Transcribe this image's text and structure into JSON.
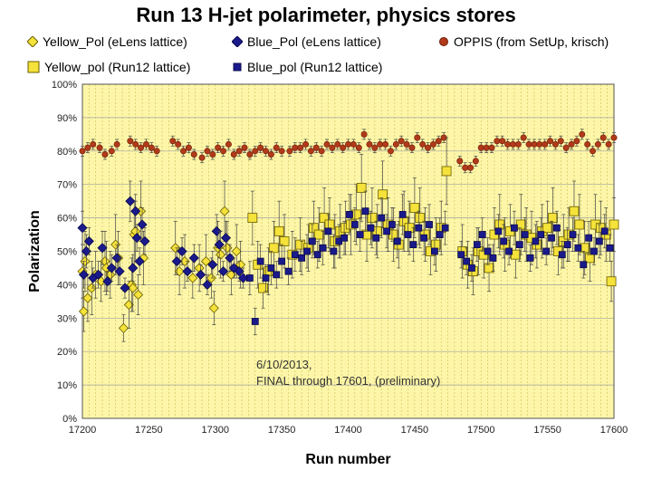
{
  "chart_data": {
    "type": "scatter",
    "title": "Run 13 H-jet polarimeter, physics stores",
    "xlabel": "Run number",
    "ylabel": "Polarization",
    "xlim": [
      17200,
      17600
    ],
    "ylim": [
      0,
      100
    ],
    "x_ticks": [
      "17200",
      "17250",
      "17300",
      "17350",
      "17400",
      "17450",
      "17500",
      "17550",
      "17600"
    ],
    "y_ticks": [
      "0%",
      "10%",
      "20%",
      "30%",
      "40%",
      "50%",
      "60%",
      "70%",
      "80%",
      "90%",
      "100%"
    ],
    "grid": true,
    "annotation": [
      "6/10/2013,",
      "FINAL through 17601, (preliminary)"
    ],
    "series": [
      {
        "name": "Yellow_Pol (eLens lattice)",
        "marker": "diamond",
        "color": "#f5e23a",
        "edge": "#6b5e00",
        "x": [
          17200,
          17201,
          17202,
          17204,
          17207,
          17210,
          17214,
          17217,
          17218,
          17221,
          17225,
          17227,
          17231,
          17235,
          17237,
          17238,
          17239,
          17240,
          17242,
          17244,
          17246,
          17270,
          17273,
          17277,
          17283,
          17288,
          17293,
          17297,
          17299,
          17302,
          17304,
          17307,
          17309,
          17312,
          17316,
          17319
        ],
        "y": [
          44,
          32,
          47,
          36,
          39,
          43,
          41,
          47,
          45,
          43,
          52,
          48,
          27,
          34,
          40,
          39,
          55,
          56,
          37,
          62,
          48,
          51,
          44,
          47,
          42,
          45,
          47,
          42,
          33,
          51,
          49,
          62,
          51,
          43,
          50,
          46
        ],
        "err": [
          8,
          6,
          9,
          7,
          8,
          7,
          6,
          9,
          8,
          7,
          9,
          8,
          4,
          7,
          8,
          7,
          10,
          9,
          6,
          9,
          8,
          8,
          7,
          8,
          6,
          7,
          8,
          6,
          5,
          8,
          7,
          9,
          8,
          6,
          8,
          7
        ]
      },
      {
        "name": "Blue_Pol (eLens lattice)",
        "marker": "diamond",
        "color": "#1a1a8c",
        "edge": "#0a0a4a",
        "x": [
          17200,
          17201,
          17203,
          17205,
          17208,
          17212,
          17215,
          17219,
          17222,
          17226,
          17228,
          17232,
          17236,
          17238,
          17240,
          17241,
          17243,
          17245,
          17247,
          17271,
          17275,
          17279,
          17284,
          17289,
          17294,
          17298,
          17301,
          17303,
          17306,
          17308,
          17311,
          17314,
          17318,
          17321
        ],
        "y": [
          57,
          43,
          50,
          53,
          42,
          43,
          51,
          41,
          45,
          48,
          44,
          39,
          65,
          45,
          62,
          54,
          47,
          58,
          53,
          47,
          50,
          44,
          48,
          43,
          40,
          46,
          56,
          52,
          44,
          54,
          48,
          45,
          44,
          42
        ],
        "err": [
          5,
          4,
          5,
          4,
          3,
          4,
          5,
          3,
          4,
          4,
          4,
          3,
          6,
          4,
          5,
          4,
          4,
          5,
          4,
          4,
          4,
          3,
          4,
          3,
          3,
          4,
          5,
          4,
          3,
          5,
          4,
          3,
          3,
          3
        ]
      },
      {
        "name": "OPPIS (from SetUp, krisch)",
        "marker": "circle",
        "color": "#b03a1a",
        "edge": "#6e1e08",
        "x": [
          17200,
          17204,
          17208,
          17213,
          17217,
          17222,
          17226,
          17236,
          17240,
          17244,
          17248,
          17252,
          17256,
          17268,
          17272,
          17276,
          17280,
          17284,
          17290,
          17294,
          17298,
          17302,
          17306,
          17310,
          17314,
          17318,
          17322,
          17326,
          17330,
          17334,
          17338,
          17342,
          17346,
          17350,
          17356,
          17360,
          17364,
          17368,
          17372,
          17376,
          17380,
          17384,
          17388,
          17392,
          17396,
          17400,
          17404,
          17408,
          17412,
          17416,
          17420,
          17424,
          17428,
          17432,
          17436,
          17440,
          17444,
          17448,
          17452,
          17456,
          17460,
          17464,
          17468,
          17472,
          17484,
          17488,
          17492,
          17496,
          17500,
          17504,
          17508,
          17512,
          17516,
          17520,
          17524,
          17528,
          17532,
          17536,
          17540,
          17544,
          17548,
          17552,
          17556,
          17560,
          17564,
          17568,
          17572,
          17576,
          17580,
          17584,
          17588,
          17592,
          17596,
          17600
        ],
        "y": [
          80,
          81,
          82,
          81,
          79,
          80,
          82,
          83,
          82,
          81,
          82,
          81,
          80,
          83,
          82,
          80,
          81,
          79,
          78,
          80,
          79,
          81,
          80,
          82,
          79,
          80,
          81,
          79,
          80,
          81,
          80,
          79,
          81,
          80,
          80,
          81,
          81,
          82,
          80,
          81,
          80,
          82,
          81,
          82,
          81,
          82,
          82,
          81,
          85,
          82,
          81,
          82,
          82,
          80,
          82,
          83,
          82,
          81,
          84,
          82,
          81,
          82,
          83,
          84,
          77,
          75,
          75,
          77,
          81,
          81,
          81,
          83,
          83,
          82,
          82,
          82,
          84,
          82,
          82,
          82,
          82,
          83,
          82,
          83,
          81,
          82,
          83,
          85,
          82,
          80,
          82,
          84,
          82,
          84
        ],
        "err": [
          1.5,
          1.5,
          1.5,
          1.5,
          1.5,
          1.5,
          1.5,
          1.5,
          1.5,
          1.5,
          1.5,
          1.5,
          1.5,
          1.5,
          1.5,
          1.5,
          1.5,
          1.5,
          1.5,
          1.5,
          1.5,
          1.5,
          1.5,
          1.5,
          1.5,
          1.5,
          1.5,
          1.5,
          1.5,
          1.5,
          1.5,
          1.5,
          1.5,
          1.5,
          1.5,
          1.5,
          1.5,
          1.5,
          1.5,
          1.5,
          1.5,
          1.5,
          1.5,
          1.5,
          1.5,
          1.5,
          1.5,
          1.5,
          1.5,
          1.5,
          1.5,
          1.5,
          1.5,
          1.5,
          1.5,
          1.5,
          1.5,
          1.5,
          1.5,
          1.5,
          1.5,
          1.5,
          1.5,
          1.5,
          1.5,
          1.5,
          1.5,
          1.5,
          1.5,
          1.5,
          1.5,
          1.5,
          1.5,
          1.5,
          1.5,
          1.5,
          1.5,
          1.5,
          1.5,
          1.5,
          1.5,
          1.5,
          1.5,
          1.5,
          1.5,
          1.5,
          1.5,
          1.5,
          1.5,
          1.5,
          1.5,
          1.5,
          1.5,
          1.5
        ]
      },
      {
        "name": "Yellow_pol (Run12 lattice)",
        "marker": "square",
        "color": "#f5e23a",
        "edge": "#6b5e00",
        "x": [
          17328,
          17332,
          17336,
          17340,
          17344,
          17348,
          17352,
          17358,
          17364,
          17370,
          17374,
          17378,
          17382,
          17386,
          17390,
          17394,
          17398,
          17402,
          17406,
          17410,
          17414,
          17418,
          17422,
          17426,
          17430,
          17434,
          17438,
          17442,
          17446,
          17450,
          17454,
          17458,
          17462,
          17466,
          17470,
          17474,
          17486,
          17490,
          17494,
          17498,
          17502,
          17506,
          17510,
          17514,
          17518,
          17522,
          17526,
          17530,
          17534,
          17538,
          17542,
          17546,
          17550,
          17554,
          17558,
          17562,
          17566,
          17570,
          17574,
          17578,
          17582,
          17586,
          17590,
          17594,
          17598,
          17600
        ],
        "y": [
          60,
          46,
          39,
          44,
          51,
          56,
          53,
          49,
          52,
          51,
          57,
          55,
          60,
          58,
          53,
          56,
          57,
          58,
          61,
          69,
          55,
          60,
          56,
          67,
          58,
          55,
          52,
          59,
          57,
          63,
          60,
          55,
          50,
          52,
          57,
          74,
          50,
          46,
          44,
          50,
          49,
          45,
          55,
          58,
          52,
          56,
          49,
          58,
          55,
          54,
          52,
          56,
          57,
          60,
          50,
          53,
          55,
          62,
          58,
          51,
          48,
          58,
          57,
          55,
          41,
          58
        ],
        "err": [
          8,
          7,
          6,
          7,
          8,
          9,
          8,
          7,
          8,
          7,
          8,
          8,
          9,
          8,
          8,
          8,
          8,
          9,
          9,
          10,
          8,
          9,
          8,
          10,
          8,
          8,
          7,
          9,
          8,
          9,
          9,
          8,
          7,
          8,
          8,
          10,
          8,
          7,
          7,
          7,
          7,
          7,
          8,
          9,
          8,
          8,
          7,
          9,
          8,
          8,
          7,
          8,
          8,
          9,
          7,
          8,
          8,
          9,
          9,
          8,
          7,
          9,
          8,
          8,
          6,
          8
        ]
      },
      {
        "name": "Blue_pol (Run12 lattice)",
        "marker": "square",
        "color": "#1a1a8c",
        "edge": "#0a0a4a",
        "x": [
          17326,
          17330,
          17334,
          17338,
          17342,
          17346,
          17350,
          17355,
          17360,
          17365,
          17369,
          17373,
          17377,
          17381,
          17385,
          17389,
          17393,
          17397,
          17401,
          17405,
          17409,
          17413,
          17417,
          17421,
          17425,
          17429,
          17433,
          17437,
          17441,
          17445,
          17449,
          17453,
          17457,
          17461,
          17465,
          17469,
          17473,
          17485,
          17489,
          17493,
          17497,
          17501,
          17505,
          17509,
          17513,
          17517,
          17521,
          17525,
          17529,
          17533,
          17537,
          17541,
          17545,
          17549,
          17553,
          17557,
          17561,
          17565,
          17569,
          17573,
          17577,
          17581,
          17585,
          17589,
          17593,
          17597
        ],
        "y": [
          42,
          29,
          47,
          42,
          45,
          43,
          47,
          44,
          49,
          48,
          50,
          53,
          49,
          51,
          56,
          50,
          53,
          54,
          61,
          58,
          55,
          62,
          57,
          54,
          60,
          56,
          58,
          53,
          61,
          55,
          52,
          57,
          54,
          58,
          50,
          55,
          57,
          49,
          47,
          45,
          52,
          55,
          50,
          48,
          56,
          53,
          50,
          57,
          52,
          55,
          48,
          53,
          55,
          50,
          54,
          57,
          49,
          52,
          55,
          51,
          46,
          54,
          50,
          53,
          56,
          51
        ],
        "err": [
          5,
          4,
          5,
          4,
          5,
          4,
          5,
          4,
          5,
          5,
          5,
          5,
          4,
          5,
          5,
          5,
          5,
          5,
          6,
          5,
          5,
          6,
          5,
          5,
          6,
          5,
          5,
          5,
          6,
          5,
          5,
          5,
          5,
          6,
          4,
          5,
          5,
          4,
          4,
          4,
          5,
          5,
          4,
          4,
          5,
          5,
          4,
          5,
          5,
          5,
          4,
          5,
          5,
          4,
          5,
          5,
          4,
          5,
          5,
          4,
          4,
          5,
          4,
          5,
          5,
          4
        ]
      }
    ]
  }
}
